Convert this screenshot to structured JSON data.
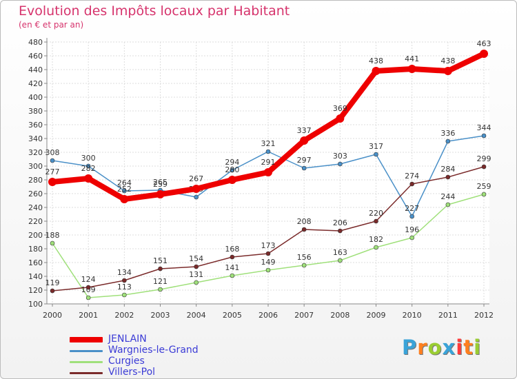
{
  "title": "Evolution des Impôts locaux par Habitant",
  "subtitle": "(en € et par an)",
  "chart_data": {
    "type": "line",
    "title": "Evolution des Impôts locaux par Habitant",
    "subtitle": "(en € et par an)",
    "xlabel": "",
    "ylabel": "",
    "ylim": [
      100,
      480
    ],
    "ytick_step": 20,
    "grid": true,
    "legend_position": "bottom-left",
    "x": [
      "2000",
      "2001",
      "2002",
      "2003",
      "2004",
      "2005",
      "2006",
      "2007",
      "2008",
      "2009",
      "2010",
      "2011",
      "2012"
    ],
    "series": [
      {
        "name": "Wargnies-le-Grand",
        "color": "#4a90c8",
        "values": [
          308,
          300,
          264,
          265,
          255,
          294,
          321,
          297,
          303,
          317,
          227,
          336,
          344
        ]
      },
      {
        "name": "Curgies",
        "color": "#9fe07a",
        "values": [
          188,
          109,
          113,
          121,
          131,
          141,
          149,
          156,
          163,
          182,
          196,
          244,
          259
        ]
      },
      {
        "name": "Villers-Pol",
        "color": "#7a2a2a",
        "values": [
          119,
          124,
          134,
          151,
          154,
          168,
          173,
          208,
          206,
          220,
          274,
          284,
          299
        ]
      },
      {
        "name": "JENLAIN",
        "color": "#ee0000",
        "values": [
          277,
          282,
          252,
          259,
          267,
          280,
          291,
          337,
          369,
          438,
          441,
          438,
          463
        ]
      }
    ],
    "legend_order": [
      "JENLAIN",
      "Wargnies-le-Grand",
      "Curgies",
      "Villers-Pol"
    ]
  },
  "logo": {
    "text": "Proxiti",
    "letter_colors": [
      "#3aa3d8",
      "#ff7f1f",
      "#9acd32",
      "#3aa3d8",
      "#ff3b3b",
      "#ff7f1f",
      "#9acd32"
    ]
  }
}
